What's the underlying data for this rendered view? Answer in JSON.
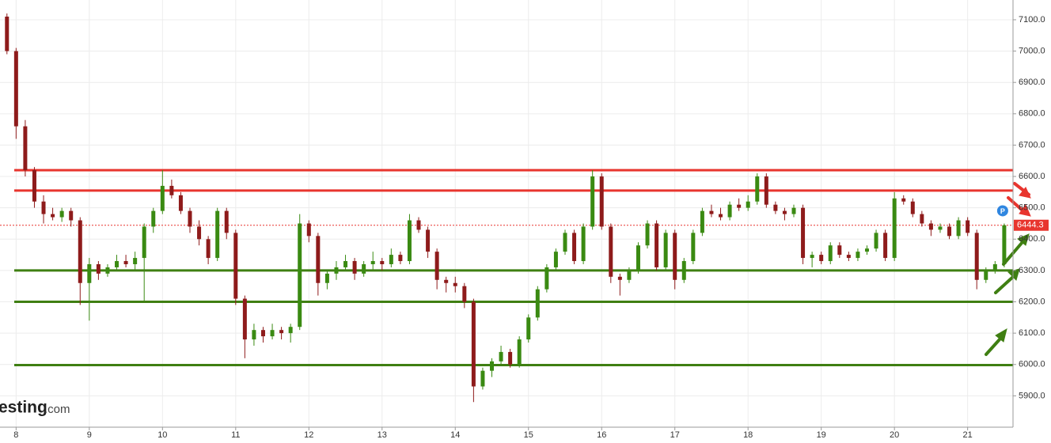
{
  "chart_data": {
    "type": "candlestick",
    "xlim": [
      7.78,
      21.62
    ],
    "xticks": [
      8,
      9,
      10,
      11,
      12,
      13,
      14,
      15,
      16,
      17,
      18,
      19,
      20,
      21
    ],
    "ylim": [
      5800,
      7163
    ],
    "yticks": [
      {
        "value": 5900,
        "label": "5900.0"
      },
      {
        "value": 6000,
        "label": "6000.0"
      },
      {
        "value": 6100,
        "label": "6100.0"
      },
      {
        "value": 6200,
        "label": "6200.0"
      },
      {
        "value": 6300,
        "label": "6300.0"
      },
      {
        "value": 6400,
        "label": "6400.0"
      },
      {
        "value": 6500,
        "label": "6500.0"
      },
      {
        "value": 6600,
        "label": "6600.0"
      },
      {
        "value": 6700,
        "label": "6700.0"
      },
      {
        "value": 6800,
        "label": "6800.0"
      },
      {
        "value": 6900,
        "label": "6900.0"
      },
      {
        "value": 7000,
        "label": "7000.0"
      },
      {
        "value": 7100,
        "label": "7100.0"
      }
    ],
    "grid": true,
    "up_color": "#3a8a12",
    "down_color": "#8e1b1b",
    "levels": [
      {
        "value": 6620,
        "color": "#e8352e"
      },
      {
        "value": 6555,
        "color": "#e8352e"
      },
      {
        "value": 6300,
        "color": "#3f7f12"
      },
      {
        "value": 6200,
        "color": "#3f7f12"
      },
      {
        "value": 5998,
        "color": "#3f7f12"
      }
    ],
    "last_price": 6444.3,
    "last_price_color": "#e8352e",
    "marker_label": "P",
    "watermark": "esting",
    "watermark_suffix": ".com",
    "x": [
      7.75,
      7.875,
      8,
      8.125,
      8.25,
      8.375,
      8.5,
      8.625,
      8.75,
      8.875,
      9,
      9.125,
      9.25,
      9.375,
      9.5,
      9.625,
      9.75,
      9.875,
      10,
      10.125,
      10.25,
      10.375,
      10.5,
      10.625,
      10.75,
      10.875,
      11,
      11.125,
      11.25,
      11.375,
      11.5,
      11.625,
      11.75,
      11.875,
      12,
      12.125,
      12.25,
      12.375,
      12.5,
      12.625,
      12.75,
      12.875,
      13,
      13.125,
      13.25,
      13.375,
      13.5,
      13.625,
      13.75,
      13.875,
      14,
      14.125,
      14.25,
      14.375,
      14.5,
      14.625,
      14.75,
      14.875,
      15,
      15.125,
      15.25,
      15.375,
      15.5,
      15.625,
      15.75,
      15.875,
      16,
      16.125,
      16.25,
      16.375,
      16.5,
      16.625,
      16.75,
      16.875,
      17,
      17.125,
      17.25,
      17.375,
      17.5,
      17.625,
      17.75,
      17.875,
      18,
      18.125,
      18.25,
      18.375,
      18.5,
      18.625,
      18.75,
      18.875,
      19,
      19.125,
      19.25,
      19.375,
      19.5,
      19.625,
      19.75,
      19.875,
      20,
      20.125,
      20.25,
      20.375,
      20.5,
      20.625,
      20.75,
      20.875,
      21,
      21.125,
      21.25,
      21.375,
      21.5
    ],
    "ohlc": [
      [
        7130,
        7140,
        7100,
        7110
      ],
      [
        7110,
        7120,
        6990,
        7000
      ],
      [
        7000,
        7010,
        6720,
        6760
      ],
      [
        6760,
        6780,
        6600,
        6620
      ],
      [
        6620,
        6630,
        6500,
        6520
      ],
      [
        6520,
        6540,
        6450,
        6480
      ],
      [
        6480,
        6500,
        6460,
        6470
      ],
      [
        6470,
        6500,
        6455,
        6490
      ],
      [
        6490,
        6500,
        6440,
        6460
      ],
      [
        6460,
        6470,
        6190,
        6260
      ],
      [
        6260,
        6340,
        6140,
        6320
      ],
      [
        6320,
        6330,
        6270,
        6290
      ],
      [
        6290,
        6320,
        6280,
        6310
      ],
      [
        6310,
        6350,
        6300,
        6330
      ],
      [
        6330,
        6350,
        6310,
        6320
      ],
      [
        6320,
        6360,
        6300,
        6340
      ],
      [
        6340,
        6450,
        6200,
        6440
      ],
      [
        6440,
        6500,
        6420,
        6490
      ],
      [
        6490,
        6620,
        6480,
        6570
      ],
      [
        6570,
        6590,
        6530,
        6540
      ],
      [
        6540,
        6550,
        6480,
        6490
      ],
      [
        6490,
        6500,
        6420,
        6440
      ],
      [
        6440,
        6460,
        6380,
        6400
      ],
      [
        6400,
        6410,
        6320,
        6340
      ],
      [
        6340,
        6500,
        6330,
        6490
      ],
      [
        6490,
        6500,
        6400,
        6420
      ],
      [
        6420,
        6430,
        6190,
        6210
      ],
      [
        6210,
        6220,
        6020,
        6080
      ],
      [
        6080,
        6130,
        6060,
        6110
      ],
      [
        6110,
        6120,
        6070,
        6090
      ],
      [
        6090,
        6130,
        6080,
        6110
      ],
      [
        6110,
        6120,
        6080,
        6100
      ],
      [
        6100,
        6130,
        6070,
        6120
      ],
      [
        6120,
        6480,
        6110,
        6450
      ],
      [
        6450,
        6460,
        6390,
        6410
      ],
      [
        6410,
        6420,
        6220,
        6260
      ],
      [
        6260,
        6300,
        6240,
        6290
      ],
      [
        6290,
        6330,
        6270,
        6310
      ],
      [
        6310,
        6350,
        6300,
        6330
      ],
      [
        6330,
        6340,
        6270,
        6290
      ],
      [
        6290,
        6330,
        6280,
        6320
      ],
      [
        6320,
        6360,
        6300,
        6330
      ],
      [
        6330,
        6340,
        6300,
        6320
      ],
      [
        6320,
        6370,
        6310,
        6350
      ],
      [
        6350,
        6360,
        6320,
        6330
      ],
      [
        6330,
        6480,
        6320,
        6460
      ],
      [
        6460,
        6470,
        6420,
        6430
      ],
      [
        6430,
        6440,
        6340,
        6360
      ],
      [
        6360,
        6370,
        6240,
        6270
      ],
      [
        6270,
        6280,
        6230,
        6260
      ],
      [
        6260,
        6280,
        6230,
        6250
      ],
      [
        6250,
        6260,
        6180,
        6200
      ],
      [
        6200,
        6210,
        5880,
        5930
      ],
      [
        5930,
        5990,
        5920,
        5980
      ],
      [
        5980,
        6020,
        5960,
        6010
      ],
      [
        6010,
        6060,
        6000,
        6040
      ],
      [
        6040,
        6050,
        5990,
        6000
      ],
      [
        6000,
        6090,
        5990,
        6080
      ],
      [
        6080,
        6160,
        6070,
        6150
      ],
      [
        6150,
        6250,
        6140,
        6240
      ],
      [
        6240,
        6320,
        6230,
        6310
      ],
      [
        6310,
        6370,
        6300,
        6360
      ],
      [
        6360,
        6430,
        6350,
        6420
      ],
      [
        6420,
        6430,
        6320,
        6330
      ],
      [
        6330,
        6450,
        6320,
        6440
      ],
      [
        6440,
        6620,
        6430,
        6600
      ],
      [
        6600,
        6610,
        6430,
        6440
      ],
      [
        6440,
        6450,
        6260,
        6280
      ],
      [
        6280,
        6290,
        6220,
        6270
      ],
      [
        6270,
        6310,
        6260,
        6300
      ],
      [
        6300,
        6390,
        6290,
        6380
      ],
      [
        6380,
        6460,
        6370,
        6450
      ],
      [
        6450,
        6460,
        6300,
        6310
      ],
      [
        6310,
        6430,
        6300,
        6420
      ],
      [
        6420,
        6430,
        6240,
        6270
      ],
      [
        6270,
        6340,
        6260,
        6330
      ],
      [
        6330,
        6430,
        6320,
        6420
      ],
      [
        6420,
        6500,
        6410,
        6490
      ],
      [
        6490,
        6510,
        6470,
        6480
      ],
      [
        6480,
        6500,
        6460,
        6470
      ],
      [
        6470,
        6520,
        6460,
        6510
      ],
      [
        6510,
        6530,
        6490,
        6500
      ],
      [
        6500,
        6540,
        6490,
        6520
      ],
      [
        6520,
        6610,
        6510,
        6600
      ],
      [
        6600,
        6610,
        6500,
        6510
      ],
      [
        6510,
        6520,
        6480,
        6490
      ],
      [
        6490,
        6500,
        6460,
        6480
      ],
      [
        6480,
        6510,
        6470,
        6500
      ],
      [
        6500,
        6510,
        6320,
        6340
      ],
      [
        6340,
        6360,
        6310,
        6350
      ],
      [
        6350,
        6360,
        6320,
        6330
      ],
      [
        6330,
        6390,
        6320,
        6380
      ],
      [
        6380,
        6390,
        6340,
        6350
      ],
      [
        6350,
        6360,
        6330,
        6340
      ],
      [
        6340,
        6370,
        6330,
        6360
      ],
      [
        6360,
        6380,
        6350,
        6370
      ],
      [
        6370,
        6430,
        6360,
        6420
      ],
      [
        6420,
        6430,
        6330,
        6340
      ],
      [
        6340,
        6550,
        6330,
        6530
      ],
      [
        6530,
        6540,
        6510,
        6520
      ],
      [
        6520,
        6530,
        6470,
        6480
      ],
      [
        6480,
        6490,
        6440,
        6450
      ],
      [
        6450,
        6460,
        6410,
        6430
      ],
      [
        6430,
        6450,
        6420,
        6440
      ],
      [
        6440,
        6450,
        6400,
        6410
      ],
      [
        6410,
        6470,
        6400,
        6460
      ],
      [
        6460,
        6470,
        6410,
        6420
      ],
      [
        6420,
        6430,
        6240,
        6270
      ],
      [
        6270,
        6310,
        6260,
        6300
      ],
      [
        6300,
        6330,
        6290,
        6320
      ],
      [
        6320,
        6450,
        6310,
        6444.3
      ]
    ]
  }
}
